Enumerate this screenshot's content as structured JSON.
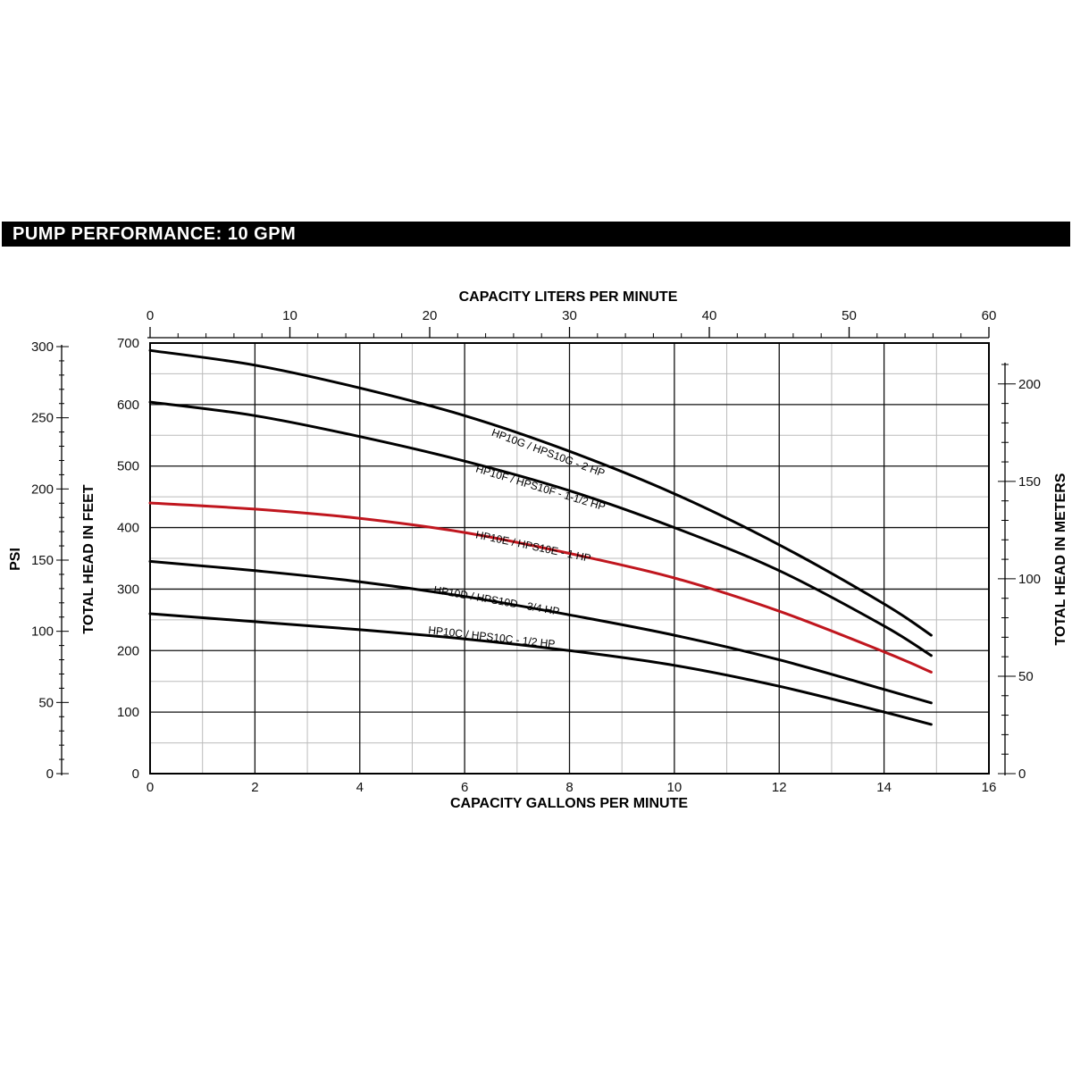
{
  "header": {
    "title": "PUMP PERFORMANCE: 10 GPM"
  },
  "colors": {
    "black": "#000000",
    "red": "#c0161e",
    "grid_major": "#111111",
    "grid_minor": "#bbbbbb"
  },
  "chart_data": {
    "type": "line",
    "title": "",
    "xlabel": "CAPACITY GALLONS PER MINUTE",
    "x2label": "CAPACITY LITERS PER MINUTE",
    "ylabel": "TOTAL HEAD IN FEET",
    "y2label": "TOTAL HEAD IN METERS",
    "y3label": "PSI",
    "xlim": [
      0,
      16
    ],
    "ylim": [
      0,
      700
    ],
    "x2lim": [
      0,
      60
    ],
    "y2lim": [
      0,
      210
    ],
    "y3lim": [
      0,
      300
    ],
    "xticks": [
      "0",
      "2",
      "4",
      "6",
      "8",
      "10",
      "12",
      "14",
      "16"
    ],
    "x2ticks": [
      "0",
      "10",
      "20",
      "30",
      "40",
      "50",
      "60"
    ],
    "yticks": [
      "0",
      "100",
      "200",
      "300",
      "400",
      "500",
      "600",
      "700"
    ],
    "y2ticks": [
      "0",
      "50",
      "100",
      "150",
      "200"
    ],
    "y3ticks": [
      "0",
      "50",
      "100",
      "150",
      "200",
      "250",
      "300"
    ],
    "grid": true,
    "series": [
      {
        "name": "HP10G / HPS10G - 2 HP",
        "color": "#000000",
        "x": [
          0,
          2,
          4,
          6,
          8,
          10,
          12,
          14,
          14.9
        ],
        "y": [
          688,
          664,
          627,
          582,
          524,
          455,
          372,
          276,
          225
        ]
      },
      {
        "name": "HP10F / HPS10F - 1-1/2 HP",
        "color": "#000000",
        "x": [
          0,
          2,
          4,
          6,
          8,
          10,
          12,
          14,
          14.9
        ],
        "y": [
          604,
          582,
          548,
          508,
          460,
          400,
          330,
          240,
          192
        ]
      },
      {
        "name": "HP10E / HPS10E - 1 HP",
        "color": "#c0161e",
        "x": [
          0,
          2,
          4,
          6,
          8,
          10,
          12,
          14,
          14.9
        ],
        "y": [
          440,
          430,
          415,
          392,
          358,
          318,
          264,
          198,
          165
        ]
      },
      {
        "name": "HP10D / HPS10D - 3/4 HP",
        "color": "#000000",
        "x": [
          0,
          2,
          4,
          6,
          8,
          10,
          12,
          14,
          14.9
        ],
        "y": [
          345,
          330,
          312,
          288,
          258,
          225,
          185,
          137,
          115
        ]
      },
      {
        "name": "HP10C / HPS10C - 1/2 HP",
        "color": "#000000",
        "x": [
          0,
          2,
          4,
          6,
          8,
          10,
          12,
          14,
          14.9
        ],
        "y": [
          260,
          247,
          234,
          219,
          200,
          176,
          142,
          100,
          80
        ]
      }
    ]
  }
}
